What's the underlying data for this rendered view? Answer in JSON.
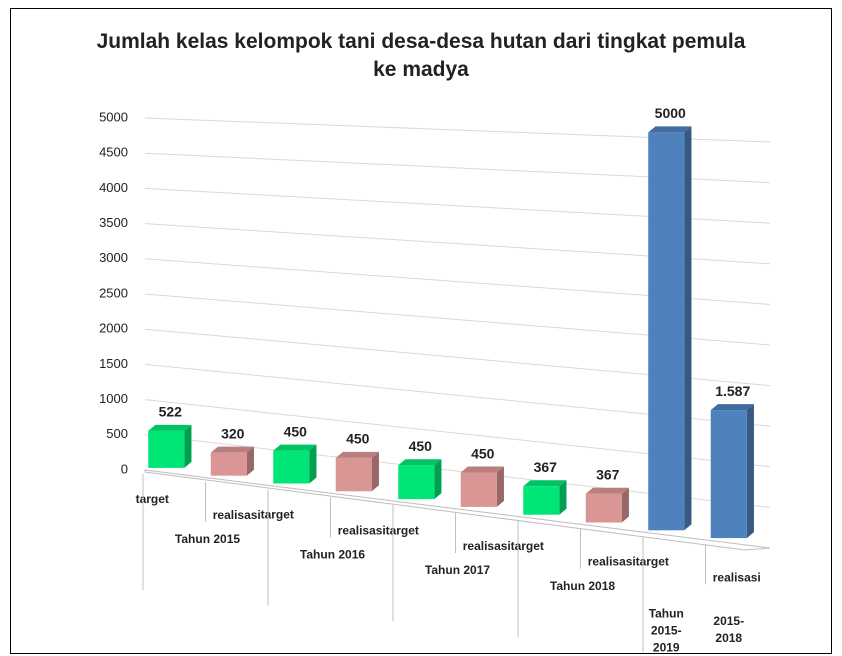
{
  "chart_data": {
    "type": "bar3d",
    "title": "Jumlah kelas kelompok tani desa-desa hutan dari tingkat pemula ke madya",
    "categories": [
      "target",
      "realisasi",
      "target",
      "realisasi",
      "target",
      "realisasi",
      "target",
      "realisasi",
      "target",
      "realisasi"
    ],
    "groups": [
      "Tahun 2015",
      "Tahun 2016",
      "Tahun 2017",
      "Tahun 2018",
      "Tahun 2015-2019",
      "2015-2018"
    ],
    "values": [
      522,
      320,
      450,
      450,
      450,
      450,
      367,
      367,
      5000,
      1587
    ],
    "value_labels": [
      "522",
      "320",
      "450",
      "450",
      "450",
      "450",
      "367",
      "367",
      "5000",
      "1.587"
    ],
    "colors": [
      "#00e676",
      "#d99694",
      "#00e676",
      "#d99694",
      "#00e676",
      "#d99694",
      "#00e676",
      "#d99694",
      "#4f81bd",
      "#4f81bd"
    ],
    "ylim": [
      0,
      5000
    ],
    "yticks": [
      0,
      500,
      1000,
      1500,
      2000,
      2500,
      3000,
      3500,
      4000,
      4500,
      5000
    ],
    "grid": true
  }
}
